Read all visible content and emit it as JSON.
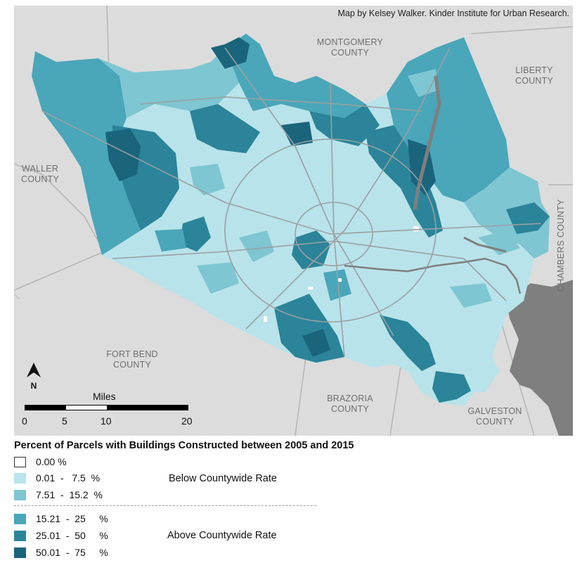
{
  "map": {
    "credit": "Map by Kelsey Walker. Kinder Institute for Urban Research.",
    "counties": {
      "montgomery": [
        "MONTGOMERY",
        "COUNTY"
      ],
      "liberty": [
        "LIBERTY",
        "COUNTY"
      ],
      "waller": [
        "WALLER",
        "COUNTY"
      ],
      "fort_bend": [
        "FORT BEND",
        "COUNTY"
      ],
      "brazoria": [
        "BRAZORIA",
        "COUNTY"
      ],
      "galveston": [
        "GALVESTON",
        "COUNTY"
      ],
      "chambers": "CHAMBERS COUNTY"
    },
    "north_label": "N",
    "colors": {
      "background": "#dcdcdc",
      "water": "#7f7f7f",
      "roads": "#9aa0a3",
      "county_lines": "#b4b4b4"
    }
  },
  "scale_bar": {
    "title": "Miles",
    "ticks": [
      "0",
      "5",
      "10",
      "20"
    ]
  },
  "legend": {
    "title": "Percent of Parcels with Buildings Constructed between 2005 and 2015",
    "items": [
      {
        "label": "0.00 %",
        "color": "#ffffff"
      },
      {
        "label": "0.01  -   7.5  %",
        "color": "#b8e3ea"
      },
      {
        "label": "7.51  -  15.2  %",
        "color": "#7ec6d2"
      },
      {
        "label": "15.21  -  25     %",
        "color": "#4aa6b9"
      },
      {
        "label": "25.01  -  50     %",
        "color": "#2b8499"
      },
      {
        "label": "50.01  -  75     %",
        "color": "#1a647c"
      }
    ],
    "groups": {
      "below": "Below Countywide Rate",
      "above": "Above Countywide Rate"
    }
  }
}
